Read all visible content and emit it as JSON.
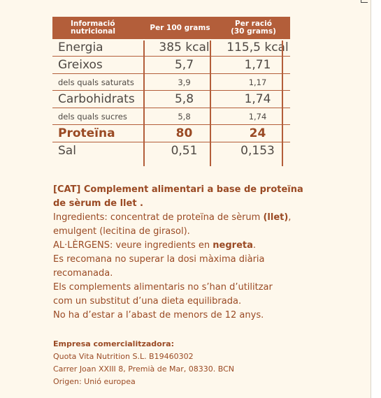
{
  "table": {
    "headers": [
      "Informació\nnutricional",
      "Per 100 grams",
      "Per ració\n(30 grams)"
    ],
    "rows": [
      {
        "name": "Energia",
        "per100": "385 kcal",
        "perServing": "115,5 kcal"
      },
      {
        "name": "Greixos",
        "per100": "5,7",
        "perServing": "1,71"
      },
      {
        "name": "dels quals saturats",
        "per100": "3,9",
        "perServing": "1,17"
      },
      {
        "name": "Carbohidrats",
        "per100": "5,8",
        "perServing": "1,74"
      },
      {
        "name": "dels quals sucres",
        "per100": "5,8",
        "perServing": "1,74"
      },
      {
        "name": "Proteïna",
        "per100": "80",
        "perServing": "24"
      },
      {
        "name": "Sal",
        "per100": "0,51",
        "perServing": "0,153"
      }
    ]
  },
  "text": {
    "title": "[CAT] Complement alimentari a base de proteïna de sèrum de llet .",
    "ingredients_prefix": "Ingredients: concentrat de proteïna de sèrum ",
    "ingredients_bold": "(llet)",
    "ingredients_suffix": ", emulgent (lecitina de girasol).",
    "allergens_prefix": "AL·LÈRGENS: veure ingredients en ",
    "allergens_bold": "negreta",
    "allergens_suffix": ".",
    "warnings": "Es recomana no superar la dosi màxima diària\nrecomanada.\nEls complements alimentaris no s’han d’utilitzar\ncom un substitut d’una dieta equilibrada.\nNo ha d’estar a l’abast de menors de 12 anys."
  },
  "company": {
    "heading": "Empresa comercialitzadora:",
    "line1": "Quota Vita Nutrition S.L. B19460302",
    "line2": "Carrer Joan XXIII 8, Premià de Mar, 08330. BCN",
    "line3": "Origen: Unió europea"
  },
  "colors": {
    "brand": "#b35e3a",
    "text": "#9a4a24",
    "value": "#4e4843",
    "background": "#fef8ec"
  }
}
